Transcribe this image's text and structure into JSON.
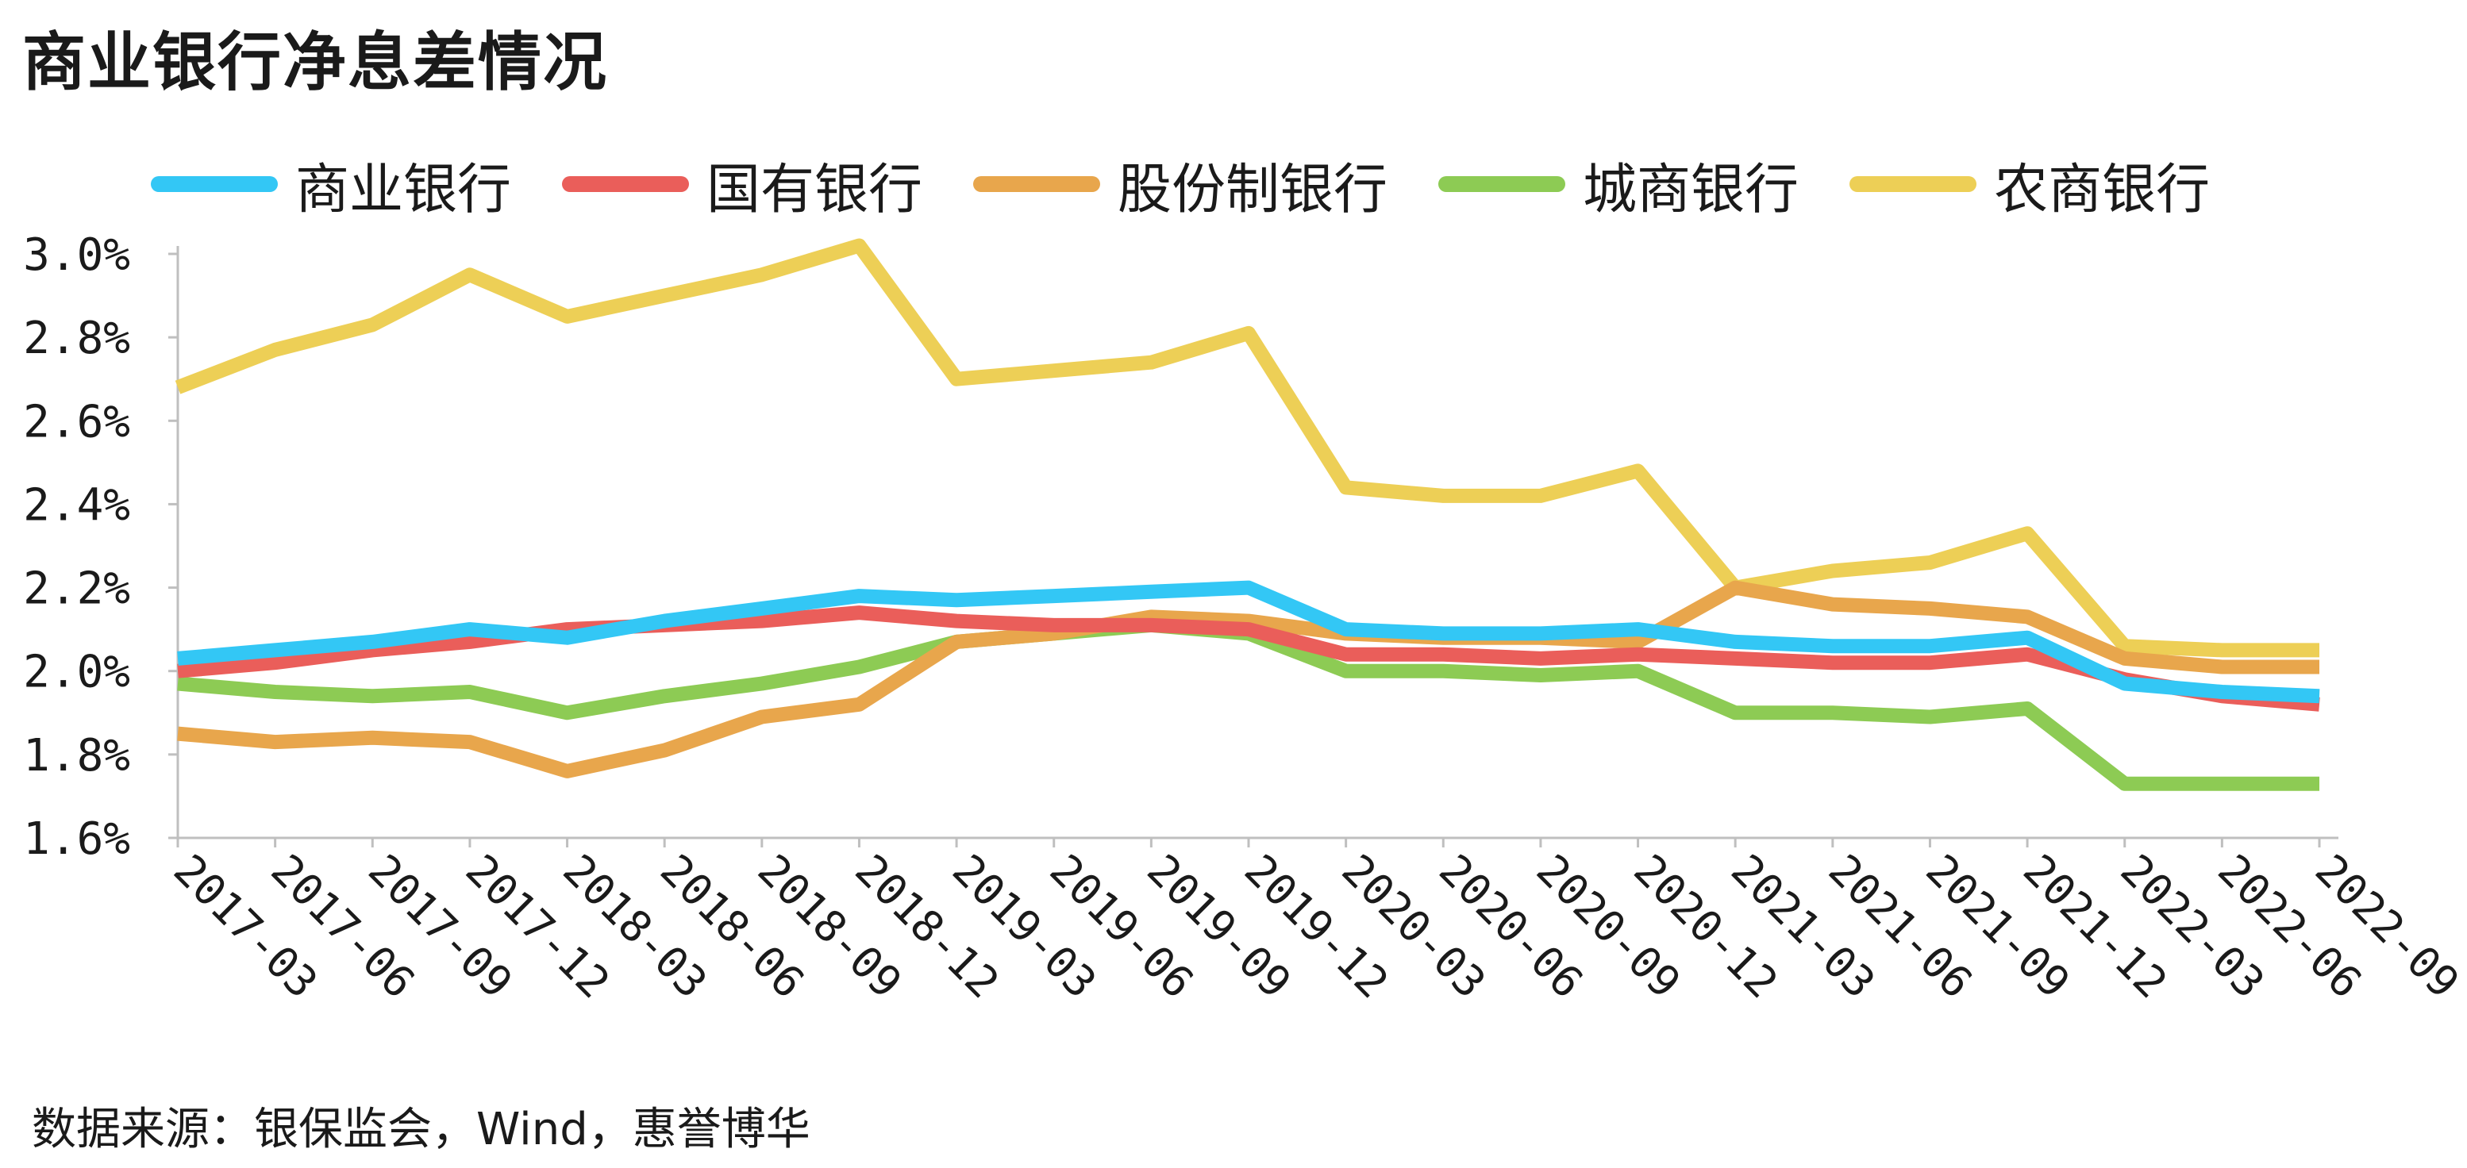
{
  "title": "商业银行净息差情况",
  "source_note": "数据来源：银保监会，Wind，惠誉博华",
  "chart_data": {
    "type": "line",
    "title": "商业银行净息差情况",
    "xlabel": "",
    "ylabel": "",
    "ylim": [
      1.6,
      3.0
    ],
    "y_ticks": [
      1.6,
      1.8,
      2.0,
      2.2,
      2.4,
      2.6,
      2.8,
      3.0
    ],
    "y_tick_labels": [
      "1.6%",
      "1.8%",
      "2.0%",
      "2.2%",
      "2.4%",
      "2.6%",
      "2.8%",
      "3.0%"
    ],
    "grid": false,
    "legend_position": "top",
    "categories": [
      "2017-03",
      "2017-06",
      "2017-09",
      "2017-12",
      "2018-03",
      "2018-06",
      "2018-09",
      "2018-12",
      "2019-03",
      "2019-06",
      "2019-09",
      "2019-12",
      "2020-03",
      "2020-06",
      "2020-09",
      "2020-12",
      "2021-03",
      "2021-06",
      "2021-09",
      "2021-12",
      "2022-03",
      "2022-06",
      "2022-09"
    ],
    "series": [
      {
        "name": "商业银行",
        "color": "#33C7F5",
        "values": [
          2.03,
          2.05,
          2.07,
          2.1,
          2.08,
          2.12,
          2.15,
          2.18,
          2.17,
          2.18,
          2.19,
          2.2,
          2.1,
          2.09,
          2.09,
          2.1,
          2.07,
          2.06,
          2.06,
          2.08,
          1.97,
          1.95,
          1.94
        ]
      },
      {
        "name": "国有银行",
        "color": "#EA5E5A",
        "values": [
          2.0,
          2.02,
          2.05,
          2.07,
          2.1,
          2.11,
          2.12,
          2.14,
          2.12,
          2.11,
          2.11,
          2.1,
          2.04,
          2.04,
          2.03,
          2.04,
          2.03,
          2.02,
          2.02,
          2.04,
          1.98,
          1.94,
          1.92
        ]
      },
      {
        "name": "股份制银行",
        "color": "#E8A64C",
        "values": [
          1.85,
          1.83,
          1.84,
          1.83,
          1.76,
          1.81,
          1.89,
          1.92,
          2.07,
          2.09,
          2.13,
          2.12,
          2.09,
          2.08,
          2.08,
          2.07,
          2.2,
          2.16,
          2.15,
          2.13,
          2.03,
          2.01,
          2.01
        ]
      },
      {
        "name": "城商银行",
        "color": "#8DCB54",
        "values": [
          1.97,
          1.95,
          1.94,
          1.95,
          1.9,
          1.94,
          1.97,
          2.01,
          2.07,
          2.09,
          2.11,
          2.09,
          2.0,
          2.0,
          1.99,
          2.0,
          1.9,
          1.9,
          1.89,
          1.91,
          1.73,
          1.73,
          1.73
        ]
      },
      {
        "name": "农商银行",
        "color": "#EDCF56",
        "values": [
          2.68,
          2.77,
          2.83,
          2.95,
          2.85,
          2.9,
          2.95,
          3.02,
          2.7,
          2.72,
          2.74,
          2.81,
          2.44,
          2.42,
          2.42,
          2.48,
          2.2,
          2.24,
          2.26,
          2.33,
          2.06,
          2.05,
          2.05
        ]
      }
    ]
  }
}
